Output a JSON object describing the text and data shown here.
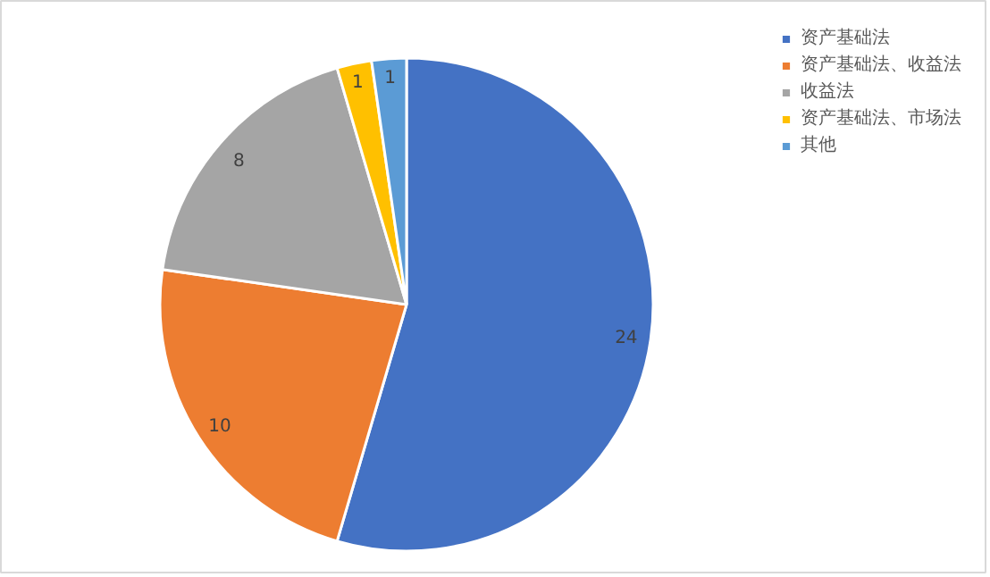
{
  "chart_data": {
    "type": "pie",
    "categories": [
      "资产基础法",
      "资产基础法、收益法",
      "收益法",
      "资产基础法、市场法",
      "其他"
    ],
    "values": [
      24,
      10,
      8,
      1,
      1
    ],
    "colors": [
      "#4472c4",
      "#ed7d31",
      "#a5a5a5",
      "#ffc000",
      "#5b9bd5"
    ],
    "data_labels": true,
    "legend": "top right"
  }
}
